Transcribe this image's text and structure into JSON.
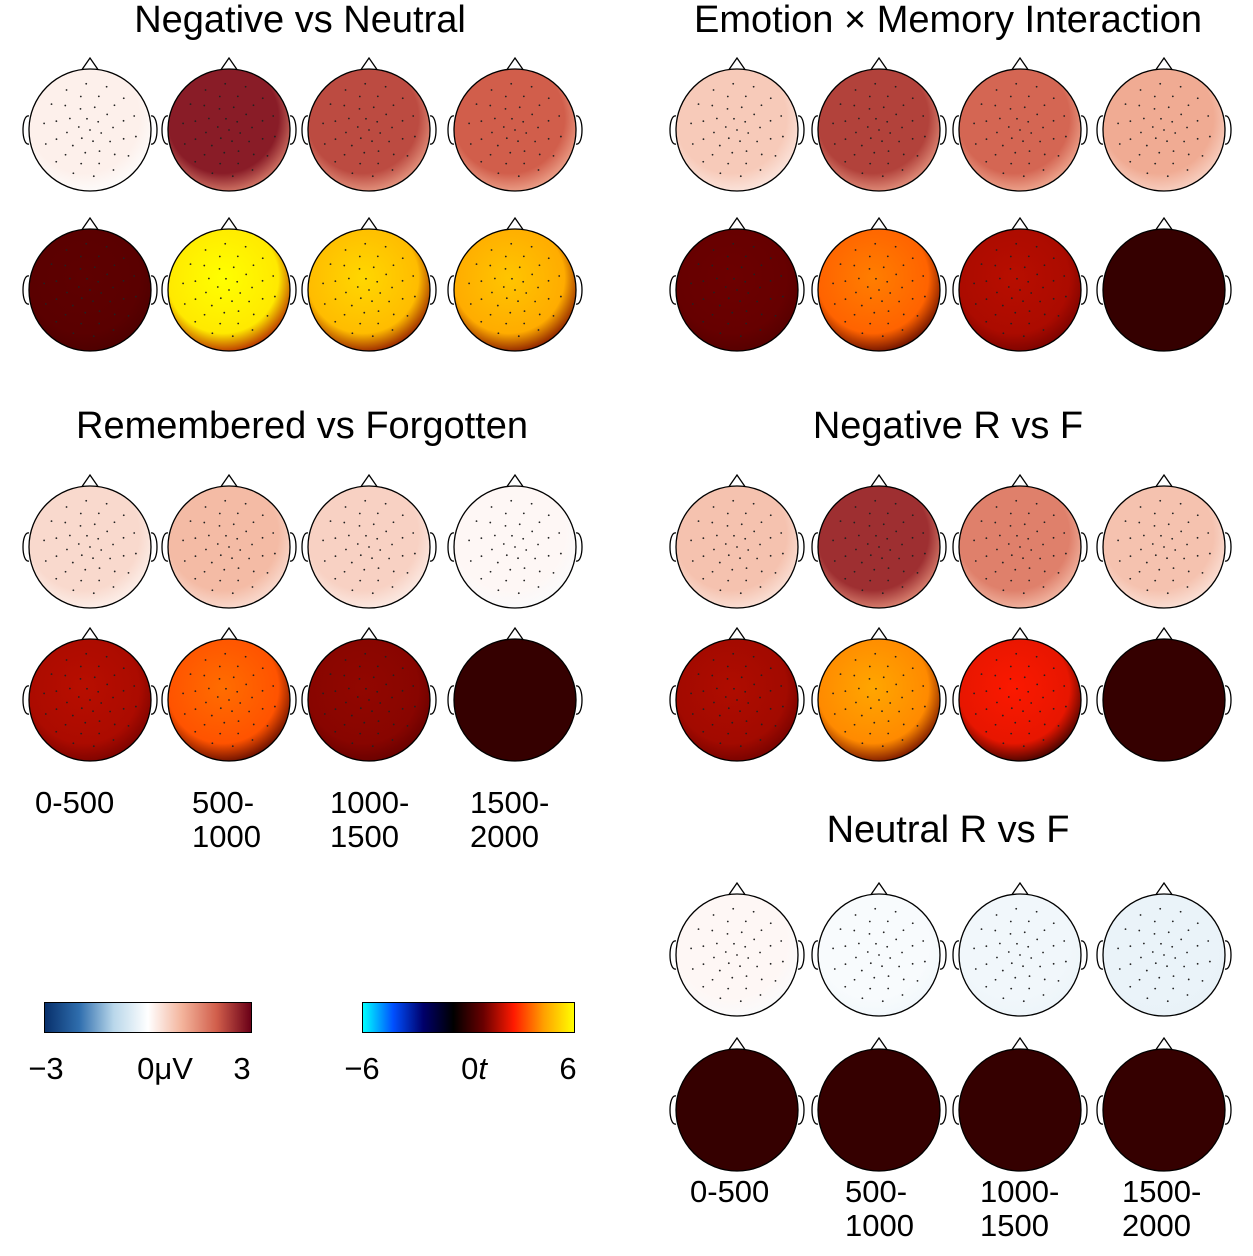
{
  "panels": [
    {
      "title": "Negative vs Neutral",
      "windows": [
        {
          "mean_uv": 0.2,
          "t": 0.6
        },
        {
          "mean_uv": 2.7,
          "t": 5.6
        },
        {
          "mean_uv": 2.2,
          "t": 4.8
        },
        {
          "mean_uv": 2.0,
          "t": 4.5
        }
      ]
    },
    {
      "title": "Emotion × Memory Interaction",
      "windows": [
        {
          "mean_uv": 0.7,
          "t": 0.8
        },
        {
          "mean_uv": 2.3,
          "t": 3.5
        },
        {
          "mean_uv": 1.9,
          "t": 1.6
        },
        {
          "mean_uv": 1.1,
          "t": 0.0
        }
      ]
    },
    {
      "title": "Remembered vs Forgotten",
      "windows": [
        {
          "mean_uv": 0.5,
          "t": 1.6
        },
        {
          "mean_uv": 0.9,
          "t": 3.3
        },
        {
          "mean_uv": 0.6,
          "t": 1.2
        },
        {
          "mean_uv": 0.1,
          "t": 0.0
        }
      ]
    },
    {
      "title": "Negative R vs F",
      "windows": [
        {
          "mean_uv": 0.8,
          "t": 1.5
        },
        {
          "mean_uv": 2.5,
          "t": 4.0
        },
        {
          "mean_uv": 1.6,
          "t": 2.3
        },
        {
          "mean_uv": 0.8,
          "t": 0.0
        }
      ]
    },
    {
      "title": "Neutral R vs F",
      "windows": [
        {
          "mean_uv": 0.1,
          "t": 0.0
        },
        {
          "mean_uv": -0.1,
          "t": 0.0
        },
        {
          "mean_uv": -0.2,
          "t": 0.0
        },
        {
          "mean_uv": -0.3,
          "t": 0.0
        }
      ]
    }
  ],
  "time_windows_left": [
    "0-500",
    "500-\n1000",
    "1000-\n1500",
    "1500-\n2000"
  ],
  "time_windows_right": [
    "0-500",
    "500-\n1000",
    "1000-\n1500",
    "1500-\n2000"
  ],
  "colorbar_uv": {
    "min_label": "−3",
    "mid_label": "0μV",
    "max_label": "3",
    "range": [
      -3,
      3
    ]
  },
  "colorbar_t": {
    "min_label": "−6",
    "mid_label": "0",
    "mid_italic": "t",
    "max_label": "6",
    "range": [
      -6,
      6
    ]
  },
  "colors": {
    "uv_scale": [
      "#08306b",
      "#2f6eae",
      "#b9d7ea",
      "#ffffff",
      "#f3b39b",
      "#d15e4b",
      "#6a0017"
    ],
    "t_scale": [
      "#00ffff",
      "#0050ff",
      "#00006a",
      "#000000",
      "#6a0000",
      "#ff1a00",
      "#ffa000",
      "#ffff00"
    ]
  }
}
